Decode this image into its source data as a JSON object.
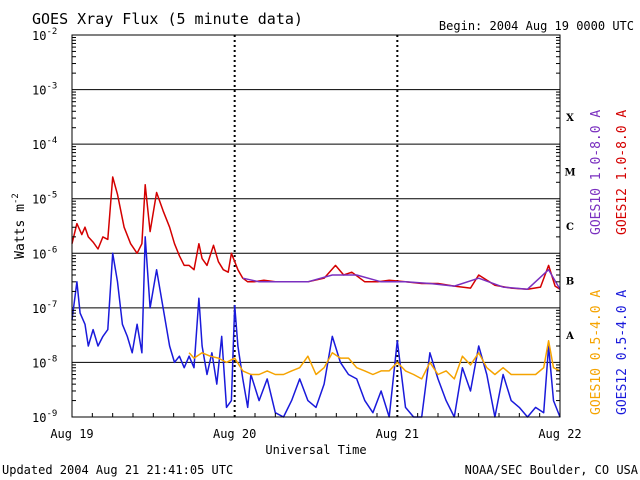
{
  "chart_data": {
    "type": "line",
    "title": "GOES Xray Flux (5 minute data)",
    "begin_label": "Begin:  2004 Aug 19 0000 UTC",
    "xlabel": "Universal Time",
    "ylabel_main": "Watts m",
    "ylabel_sup": "-2",
    "ylim": [
      1e-09,
      0.01
    ],
    "yscale": "log",
    "yticks": [
      {
        "base": "10",
        "exp": "-2",
        "value": 0.01
      },
      {
        "base": "10",
        "exp": "-3",
        "value": 0.001
      },
      {
        "base": "10",
        "exp": "-4",
        "value": 0.0001
      },
      {
        "base": "10",
        "exp": "-5",
        "value": 1e-05
      },
      {
        "base": "10",
        "exp": "-6",
        "value": 1e-06
      },
      {
        "base": "10",
        "exp": "-7",
        "value": 1e-07
      },
      {
        "base": "10",
        "exp": "-8",
        "value": 1e-08
      },
      {
        "base": "10",
        "exp": "-9",
        "value": 1e-09
      }
    ],
    "x_tick_labels": [
      "Aug 19",
      "Aug 20",
      "Aug 21",
      "Aug 22"
    ],
    "x_range_days": [
      19,
      22
    ],
    "flare_classes": [
      {
        "label": "X",
        "value": 0.0001
      },
      {
        "label": "M",
        "value": 1e-05
      },
      {
        "label": "C",
        "value": 1e-06
      },
      {
        "label": "B",
        "value": 1e-07
      },
      {
        "label": "A",
        "value": 1e-08
      }
    ],
    "grid_lines_at": [
      0.001,
      0.0001,
      1e-05,
      1e-06,
      1e-07,
      1e-08
    ],
    "legend_right_outer": [
      {
        "name": "GOES10 1.0-8.0 A",
        "color": "#7a2fbf"
      },
      {
        "name": "GOES10 0.5-4.0 A",
        "color": "#f5a300"
      }
    ],
    "legend_right_inner": [
      {
        "name": "GOES12 1.0-8.0 A",
        "color": "#d40000"
      },
      {
        "name": "GOES12 0.5-4.0 A",
        "color": "#1a1adb"
      }
    ],
    "series": [
      {
        "name": "GOES12 1.0-8.0 A",
        "color": "#d40000",
        "x": [
          19.0,
          19.03,
          19.06,
          19.08,
          19.1,
          19.13,
          19.16,
          19.19,
          19.22,
          19.25,
          19.28,
          19.3,
          19.32,
          19.36,
          19.4,
          19.43,
          19.45,
          19.48,
          19.52,
          19.56,
          19.6,
          19.63,
          19.66,
          19.69,
          19.72,
          19.75,
          19.78,
          19.8,
          19.83,
          19.87,
          19.9,
          19.93,
          19.96,
          19.98,
          20.02,
          20.05,
          20.08,
          20.12,
          20.18,
          20.25,
          20.35,
          20.45,
          20.55,
          20.62,
          20.67,
          20.72,
          20.8,
          20.88,
          20.95,
          21.05,
          21.15,
          21.25,
          21.35,
          21.45,
          21.5,
          21.6,
          21.7,
          21.8,
          21.88,
          21.93,
          21.97,
          22.0
        ],
        "y": [
          1.5e-06,
          3.5e-06,
          2.2e-06,
          3e-06,
          2e-06,
          1.6e-06,
          1.2e-06,
          2e-06,
          1.8e-06,
          2.5e-05,
          1.2e-05,
          6e-06,
          3e-06,
          1.5e-06,
          1e-06,
          1.5e-06,
          1.8e-05,
          2.5e-06,
          1.3e-05,
          6e-06,
          3e-06,
          1.5e-06,
          9e-07,
          6e-07,
          6e-07,
          5e-07,
          1.5e-06,
          8e-07,
          6e-07,
          1.4e-06,
          7e-07,
          5e-07,
          4.5e-07,
          1e-06,
          5e-07,
          3.5e-07,
          3e-07,
          3e-07,
          3.2e-07,
          3e-07,
          3e-07,
          3e-07,
          3.5e-07,
          6e-07,
          4e-07,
          4.5e-07,
          3e-07,
          3e-07,
          3.2e-07,
          3e-07,
          2.8e-07,
          2.8e-07,
          2.5e-07,
          2.3e-07,
          4e-07,
          2.6e-07,
          2.3e-07,
          2.2e-07,
          2.4e-07,
          6e-07,
          2.5e-07,
          2.2e-07
        ]
      },
      {
        "name": "GOES10 1.0-8.0 A",
        "color": "#7a2fbf",
        "x": [
          20.05,
          20.15,
          20.3,
          20.45,
          20.6,
          20.75,
          20.9,
          21.05,
          21.2,
          21.35,
          21.5,
          21.65,
          21.8,
          21.93,
          22.0
        ],
        "y": [
          3.5e-07,
          3e-07,
          3e-07,
          3e-07,
          4e-07,
          4e-07,
          3e-07,
          3e-07,
          2.8e-07,
          2.5e-07,
          3.5e-07,
          2.4e-07,
          2.2e-07,
          5e-07,
          2.2e-07
        ]
      },
      {
        "name": "GOES12 0.5-4.0 A",
        "color": "#1a1adb",
        "x": [
          19.0,
          19.03,
          19.05,
          19.08,
          19.1,
          19.13,
          19.16,
          19.19,
          19.22,
          19.25,
          19.28,
          19.31,
          19.34,
          19.37,
          19.4,
          19.43,
          19.45,
          19.48,
          19.52,
          19.56,
          19.6,
          19.63,
          19.66,
          19.69,
          19.72,
          19.75,
          19.78,
          19.8,
          19.83,
          19.86,
          19.89,
          19.92,
          19.95,
          19.98,
          20.0,
          20.02,
          20.05,
          20.08,
          20.1,
          20.15,
          20.2,
          20.25,
          20.3,
          20.35,
          20.4,
          20.45,
          20.5,
          20.55,
          20.6,
          20.65,
          20.7,
          20.75,
          20.8,
          20.85,
          20.9,
          20.95,
          21.0,
          21.05,
          21.1,
          21.15,
          21.2,
          21.25,
          21.3,
          21.35,
          21.4,
          21.45,
          21.5,
          21.55,
          21.6,
          21.65,
          21.7,
          21.75,
          21.8,
          21.85,
          21.9,
          21.93,
          21.96,
          22.0
        ],
        "y": [
          6e-08,
          3e-07,
          8e-08,
          5e-08,
          2e-08,
          4e-08,
          2e-08,
          3e-08,
          4e-08,
          1e-06,
          3e-07,
          5e-08,
          3e-08,
          1.5e-08,
          5e-08,
          1.5e-08,
          2e-06,
          1e-07,
          5e-07,
          1e-07,
          2e-08,
          1e-08,
          1.3e-08,
          8e-09,
          1.3e-08,
          8e-09,
          1.5e-07,
          2e-08,
          6e-09,
          1.5e-08,
          4e-09,
          3e-08,
          1.5e-09,
          2e-09,
          1.1e-07,
          2e-08,
          5e-09,
          1.5e-09,
          6e-09,
          2e-09,
          5e-09,
          1.2e-09,
          1e-09,
          2e-09,
          5e-09,
          2e-09,
          1.5e-09,
          4e-09,
          3e-08,
          1e-08,
          6e-09,
          5e-09,
          2e-09,
          1.2e-09,
          3e-09,
          1e-09,
          2.5e-08,
          1.5e-09,
          1e-09,
          1e-09,
          1.5e-08,
          5e-09,
          2e-09,
          1e-09,
          8e-09,
          3e-09,
          2e-08,
          6e-09,
          1e-09,
          6e-09,
          2e-09,
          1.5e-09,
          1e-09,
          1.5e-09,
          1.2e-09,
          2e-08,
          2e-09,
          1e-09
        ]
      },
      {
        "name": "GOES10 0.5-4.0 A",
        "color": "#f5a300",
        "x": [
          19.72,
          19.75,
          19.8,
          19.85,
          19.9,
          19.95,
          20.0,
          20.05,
          20.1,
          20.15,
          20.2,
          20.25,
          20.3,
          20.35,
          20.4,
          20.45,
          20.5,
          20.55,
          20.6,
          20.65,
          20.7,
          20.75,
          20.8,
          20.85,
          20.9,
          20.95,
          21.0,
          21.05,
          21.1,
          21.15,
          21.2,
          21.25,
          21.3,
          21.35,
          21.4,
          21.45,
          21.5,
          21.55,
          21.6,
          21.65,
          21.7,
          21.75,
          21.8,
          21.85,
          21.9,
          21.93,
          21.96,
          22.0
        ],
        "y": [
          1.5e-08,
          1.2e-08,
          1.5e-08,
          1.3e-08,
          1.2e-08,
          1e-08,
          1.2e-08,
          7e-09,
          6e-09,
          6e-09,
          7e-09,
          6e-09,
          6e-09,
          7e-09,
          8e-09,
          1.3e-08,
          6e-09,
          8e-09,
          1.5e-08,
          1.2e-08,
          1.2e-08,
          8e-09,
          7e-09,
          6e-09,
          7e-09,
          7e-09,
          1e-08,
          7e-09,
          6e-09,
          5e-09,
          1e-08,
          6e-09,
          7e-09,
          5e-09,
          1.3e-08,
          9e-09,
          1.5e-08,
          8e-09,
          6e-09,
          8e-09,
          6e-09,
          6e-09,
          6e-09,
          6e-09,
          8e-09,
          2.5e-08,
          8e-09,
          7e-09
        ]
      }
    ]
  },
  "footer": {
    "updated": "Updated 2004 Aug 21 21:41:05 UTC",
    "source": "NOAA/SEC Boulder, CO USA"
  }
}
